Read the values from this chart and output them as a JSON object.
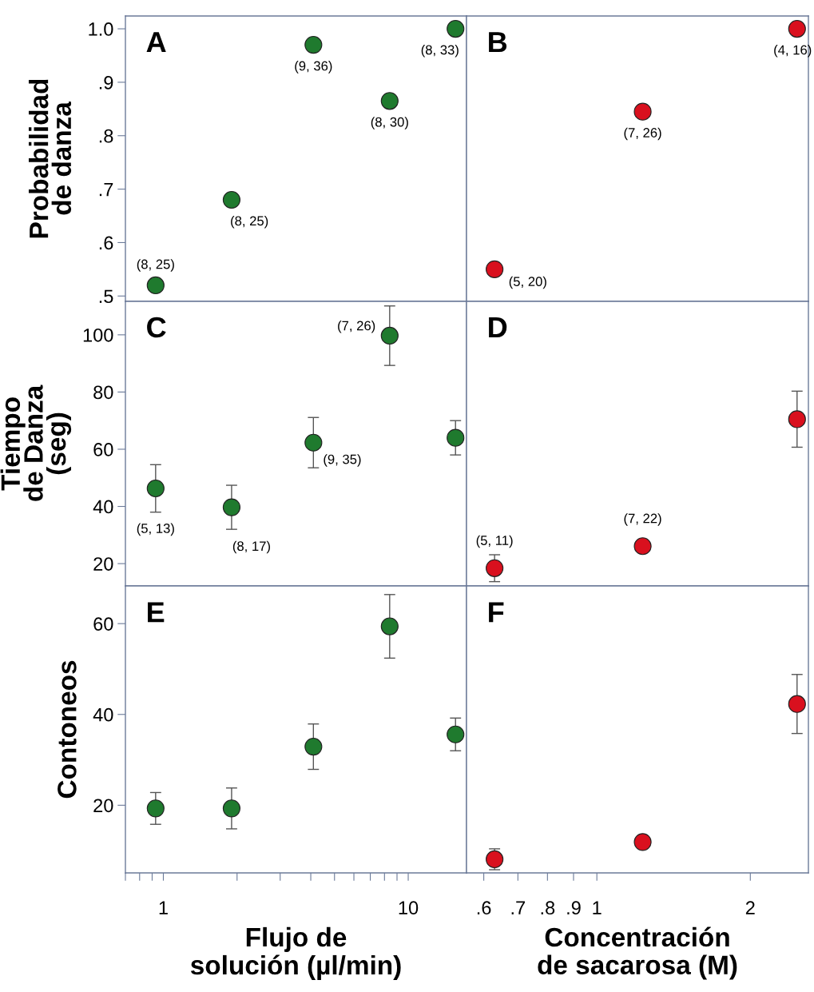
{
  "chart_data": [
    {
      "type": "scatter",
      "log": "x",
      "xlim": [
        0.7,
        17.3
      ],
      "ylim": [
        0.49,
        1.024
      ],
      "tick_labels": "y",
      "marker": "circle",
      "ylabel": "Probabilidad\nde danza",
      "yticks": [
        {
          "value": 0.5,
          "label": ".5"
        },
        {
          "value": 0.6,
          "label": ".6"
        },
        {
          "value": 0.7,
          "label": ".7"
        },
        {
          "value": 0.8,
          "label": ".8"
        },
        {
          "value": 0.9,
          "label": ".9"
        },
        {
          "value": 1.0,
          "label": "1.0"
        }
      ],
      "series": [
        {
          "color": "#1f7a2e",
          "x": [
            0.93,
            1.9,
            4.1,
            8.4,
            15.6
          ],
          "values": [
            0.52,
            0.68,
            0.97,
            0.865,
            1.0
          ]
        }
      ],
      "annotations": [
        "A",
        {
          "text": "(8, 25)",
          "x": 0.93,
          "y": 0.52
        },
        {
          "text": "(8, 25)",
          "x": 1.9,
          "y": 0.68
        },
        {
          "text": "(9, 36)",
          "x": 4.1,
          "y": 0.97
        },
        {
          "text": "(8, 30)",
          "x": 8.4,
          "y": 0.865
        },
        {
          "text": "(8, 33)",
          "x": 15.6,
          "y": 1.0
        }
      ]
    },
    {
      "type": "scatter",
      "log": "x",
      "xlim": [
        0.555,
        2.6
      ],
      "ylim": [
        0.49,
        1.024
      ],
      "tick_labels": false,
      "marker": "circle",
      "series": [
        {
          "color": "#d9101e",
          "x": [
            0.63,
            1.23,
            2.47
          ],
          "values": [
            0.55,
            0.845,
            1.0
          ]
        }
      ],
      "annotations": [
        "B",
        {
          "text": "(5, 20)",
          "x": 0.63,
          "y": 0.55
        },
        {
          "text": "(7, 26)",
          "x": 1.23,
          "y": 0.845
        },
        {
          "text": "(4, 16)",
          "x": 2.47,
          "y": 1.0
        }
      ]
    },
    {
      "type": "scatter",
      "log": "x",
      "xlim": [
        0.7,
        17.3
      ],
      "ylim": [
        12.2,
        111.7
      ],
      "tick_labels": "y",
      "marker": "circle",
      "ylabel": "Tiempo\nde Danza\n(seg)",
      "yticks": [
        20,
        40,
        60,
        80,
        100
      ],
      "series": [
        {
          "color": "#1f7a2e",
          "x": [
            0.93,
            1.9,
            4.1,
            8.4,
            15.6
          ],
          "values": [
            46.3,
            39.7,
            62.3,
            99.7,
            64.0
          ],
          "errors": [
            8.3,
            7.7,
            8.8,
            10.4,
            6.0
          ]
        }
      ],
      "annotations": [
        "C",
        {
          "text": "(5, 13)",
          "x": 0.93,
          "y": 46.3
        },
        {
          "text": "(8, 17)",
          "x": 1.9,
          "y": 39.7
        },
        {
          "text": "(9, 35)",
          "x": 4.1,
          "y": 62.3
        },
        {
          "text": "(7, 26)",
          "x": 8.4,
          "y": 99.7
        }
      ]
    },
    {
      "type": "scatter",
      "log": "x",
      "xlim": [
        0.555,
        2.6
      ],
      "ylim": [
        12.2,
        111.7
      ],
      "tick_labels": false,
      "marker": "circle",
      "series": [
        {
          "color": "#d9101e",
          "x": [
            0.63,
            1.23,
            2.47
          ],
          "values": [
            18.4,
            26.1,
            70.5
          ],
          "errors": [
            4.7,
            null,
            9.8
          ]
        }
      ],
      "annotations": [
        "D",
        {
          "text": "(5, 11)",
          "x": 0.63,
          "y": 18.4
        },
        {
          "text": "(7, 22)",
          "x": 1.23,
          "y": 26.1
        }
      ]
    },
    {
      "type": "scatter",
      "log": "x",
      "xlim": [
        0.7,
        17.3
      ],
      "ylim": [
        5.1,
        68.3
      ],
      "marker": "circle",
      "ylabel": "Contoneos",
      "xlabel": "Flujo de\nsolución (µl/min)",
      "yticks": [
        20,
        40,
        60
      ],
      "xticks": [
        {
          "value": 0.7,
          "label": null
        },
        {
          "value": 0.8,
          "label": null
        },
        {
          "value": 0.9,
          "label": null
        },
        1,
        {
          "value": 2,
          "label": null
        },
        {
          "value": 3,
          "label": null
        },
        {
          "value": 4,
          "label": null
        },
        {
          "value": 5,
          "label": null
        },
        {
          "value": 6,
          "label": null
        },
        {
          "value": 7,
          "label": null
        },
        {
          "value": 8,
          "label": null
        },
        {
          "value": 9,
          "label": null
        },
        10
      ],
      "series": [
        {
          "color": "#1f7a2e",
          "x": [
            0.93,
            1.9,
            4.1,
            8.4,
            15.6
          ],
          "values": [
            19.3,
            19.3,
            32.9,
            59.4,
            35.6
          ],
          "errors": [
            3.5,
            4.5,
            5.0,
            7.0,
            3.6
          ]
        }
      ],
      "annotations": [
        "E"
      ]
    },
    {
      "type": "scatter",
      "log": "x",
      "xlim": [
        0.555,
        2.6
      ],
      "ylim": [
        5.1,
        68.3
      ],
      "tick_labels": "x",
      "marker": "circle",
      "xlabel": "Concentración\nde sacarosa (M)",
      "xticks": [
        {
          "value": 0.6,
          "label": ".6"
        },
        {
          "value": 0.7,
          "label": ".7"
        },
        {
          "value": 0.8,
          "label": ".8"
        },
        {
          "value": 0.9,
          "label": ".9"
        },
        1,
        2
      ],
      "series": [
        {
          "color": "#d9101e",
          "x": [
            0.63,
            1.23,
            2.47
          ],
          "values": [
            8.1,
            11.9,
            42.3
          ],
          "errors": [
            2.3,
            null,
            6.5
          ]
        }
      ],
      "annotations": [
        "F"
      ]
    }
  ]
}
